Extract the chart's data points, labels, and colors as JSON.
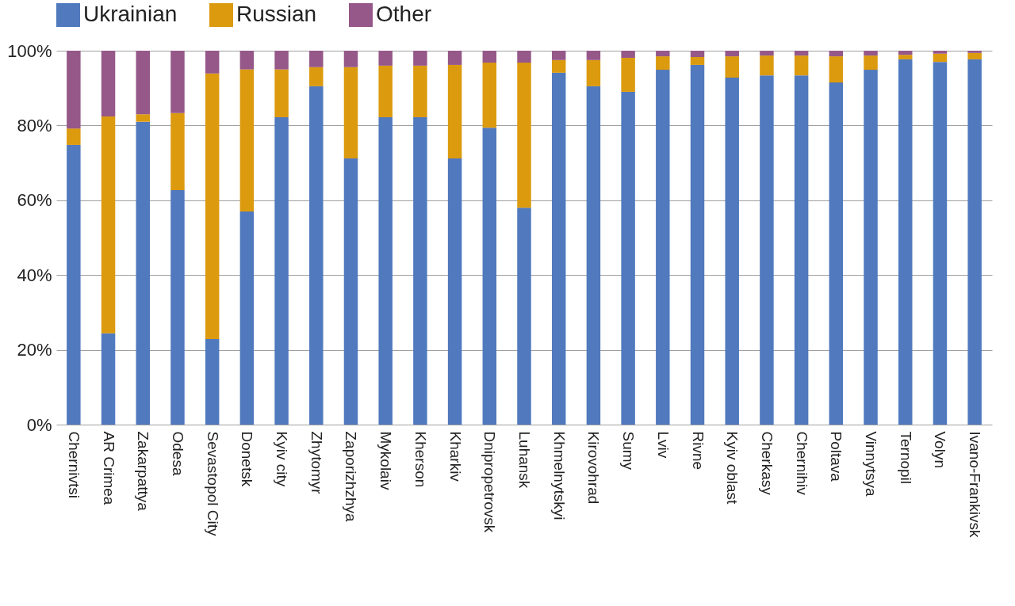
{
  "chart_data": {
    "type": "bar",
    "stacked": true,
    "categories": [
      "Chernivtsi",
      "AR Crimea",
      "Zakarpattya",
      "Odesa",
      "Sevastopol City",
      "Donetsk",
      "Kyiv city",
      "Zhytomyr",
      "Zaporizhzhya",
      "Mykolaiv",
      "Kherson",
      "Kharkiv",
      "Dnipropetrovsk",
      "Luhansk",
      "Khmelnytskyi",
      "Kirovohrad",
      "Sumy",
      "Lviv",
      "Rivne",
      "Kyiv oblast",
      "Cherkasy",
      "Chernihiv",
      "Poltava",
      "Vinnytsya",
      "Ternopil",
      "Volyn",
      "Ivano-Frankivsk"
    ],
    "series": [
      {
        "name": "Ukrainian",
        "color": "#5079be",
        "values": [
          74.8,
          24.4,
          81,
          62.7,
          22.9,
          57,
          82.2,
          90.5,
          71.2,
          82.2,
          82.2,
          71.2,
          79.4,
          58,
          94.1,
          90.5,
          89,
          94.9,
          96.2,
          92.8,
          93.4,
          93.4,
          91.5,
          94.9,
          97.7,
          97,
          97.7
        ]
      },
      {
        "name": "Russian",
        "color": "#dc9a0e",
        "values": [
          4.4,
          58,
          2,
          20.6,
          71,
          38,
          12.8,
          5.1,
          24.4,
          13.8,
          13.8,
          25,
          17.4,
          38.8,
          3.4,
          7,
          9.1,
          3.6,
          2.1,
          5.7,
          5.3,
          5.3,
          7,
          3.8,
          1.2,
          2.2,
          1.7
        ]
      },
      {
        "name": "Other",
        "color": "#955889",
        "values": [
          20.8,
          17.6,
          17,
          16.7,
          6.1,
          5,
          5,
          4.4,
          4.4,
          4,
          4,
          3.8,
          3.2,
          3.2,
          2.5,
          2.5,
          1.9,
          1.5,
          1.7,
          1.5,
          1.3,
          1.3,
          1.5,
          1.3,
          1.1,
          0.8,
          0.6
        ]
      }
    ],
    "ylim": [
      0,
      100
    ],
    "yticks": [
      {
        "value": 0,
        "label": "0%"
      },
      {
        "value": 20,
        "label": "20%"
      },
      {
        "value": 40,
        "label": "40%"
      },
      {
        "value": 60,
        "label": "60%"
      },
      {
        "value": 80,
        "label": "80%"
      },
      {
        "value": 100,
        "label": "100%"
      }
    ],
    "grid": "y",
    "legend": "top"
  }
}
